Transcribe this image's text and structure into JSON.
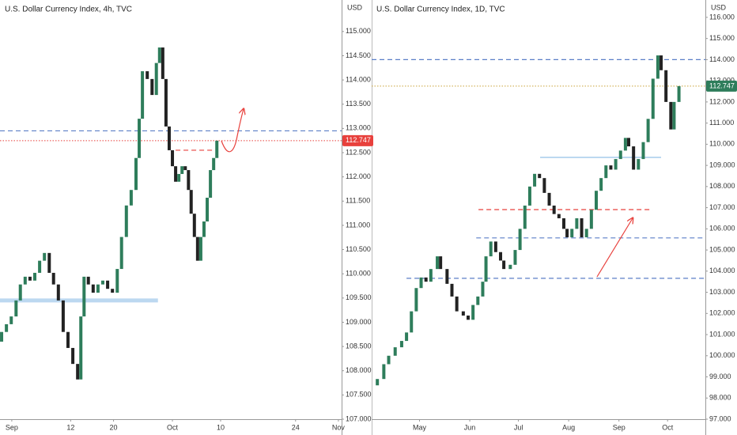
{
  "chart_data": [
    {
      "type": "candlestick",
      "title": "U.S. Dollar Currency Index, 4h, TVC",
      "axis_label": "USD",
      "x": [
        242.1,
        243.0,
        243.9,
        244.8,
        245.6,
        246.5,
        247.4,
        248.3,
        249.2,
        250.1,
        251.0,
        251.8,
        252.7,
        253.6,
        254.5,
        255.4,
        256.3,
        256.9,
        257.5,
        258.3,
        259.2,
        260.1,
        261.0,
        261.9,
        262.8,
        263.7,
        264.5,
        265.4,
        266.3,
        267.2,
        267.8,
        268.4,
        269.3,
        270.2,
        271.0,
        271.6,
        272.2,
        272.8,
        273.4,
        274.0,
        274.6,
        275.2,
        275.8,
        276.4,
        277.0,
        277.5,
        278.1,
        278.7,
        279.3,
        279.9,
        280.5,
        281.1,
        281.7,
        282.3
      ],
      "open": [
        108.6,
        108.8,
        108.96,
        109.12,
        109.45,
        109.78,
        109.94,
        109.86,
        110.02,
        110.27,
        110.43,
        110.02,
        109.78,
        109.45,
        108.8,
        108.47,
        108.14,
        107.82,
        109.12,
        109.94,
        109.78,
        109.61,
        109.78,
        109.86,
        109.69,
        109.61,
        110.1,
        110.76,
        111.41,
        111.73,
        112.39,
        113.2,
        114.18,
        114.02,
        113.69,
        114.35,
        114.67,
        114.02,
        113.04,
        112.55,
        112.22,
        111.9,
        112.06,
        112.22,
        112.14,
        111.73,
        111.24,
        110.76,
        110.27,
        110.76,
        111.08,
        111.57,
        112.14,
        112.39
      ],
      "close": [
        108.8,
        108.96,
        109.12,
        109.45,
        109.78,
        109.94,
        109.86,
        110.02,
        110.27,
        110.43,
        110.02,
        109.78,
        109.45,
        108.8,
        108.47,
        108.14,
        107.82,
        109.12,
        109.94,
        109.78,
        109.61,
        109.78,
        109.86,
        109.69,
        109.61,
        110.1,
        110.76,
        111.41,
        111.73,
        112.39,
        113.2,
        114.18,
        114.02,
        113.69,
        114.35,
        114.67,
        114.02,
        113.04,
        112.55,
        112.22,
        111.9,
        112.06,
        112.22,
        112.14,
        111.73,
        111.24,
        110.76,
        110.27,
        110.76,
        111.08,
        111.57,
        112.14,
        112.39,
        112.747
      ],
      "up_color": "#2e7d5b",
      "down_color": "#222222",
      "price_label_color": "#e8403c",
      "xlim": [
        241.8,
        305.6
      ],
      "ylim": [
        107,
        115.65
      ],
      "xticks": [
        {
          "value": 244,
          "label": "Sep"
        },
        {
          "value": 255,
          "label": "12"
        },
        {
          "value": 263,
          "label": "20"
        },
        {
          "value": 274,
          "label": "Oct"
        },
        {
          "value": 283,
          "label": "10"
        },
        {
          "value": 297,
          "label": "24"
        },
        {
          "value": 305,
          "label": "Nov"
        }
      ],
      "yticks": [
        {
          "value": 107,
          "label": "107.000"
        },
        {
          "value": 107.5,
          "label": "107.500"
        },
        {
          "value": 108,
          "label": "108.000"
        },
        {
          "value": 108.5,
          "label": "108.500"
        },
        {
          "value": 109,
          "label": "109.000"
        },
        {
          "value": 109.5,
          "label": "109.500"
        },
        {
          "value": 110,
          "label": "110.000"
        },
        {
          "value": 110.5,
          "label": "110.500"
        },
        {
          "value": 111,
          "label": "111.000"
        },
        {
          "value": 111.5,
          "label": "111.500"
        },
        {
          "value": 112,
          "label": "112.000"
        },
        {
          "value": 112.5,
          "label": "112.500"
        },
        {
          "value": 113,
          "label": "113.000"
        },
        {
          "value": 113.5,
          "label": "113.500"
        },
        {
          "value": 114,
          "label": "114.000"
        },
        {
          "value": 114.5,
          "label": "114.500"
        },
        {
          "value": 115,
          "label": "115.000"
        }
      ],
      "levels": [
        {
          "value": 112.95,
          "color": "#5b7fc7",
          "style": "dashed"
        },
        {
          "value": 112.747,
          "color": "#e8403c",
          "style": "dotted"
        },
        {
          "value": 109.45,
          "color": "#bcd8f0",
          "style": "thick",
          "from": 241.8,
          "to": 271.3
        },
        {
          "value": 112.55,
          "color": "#e8403c",
          "style": "dashed",
          "from": 274.6,
          "to": 281.7
        }
      ]
    },
    {
      "type": "candlestick",
      "title": "U.S. Dollar Currency Index, 1D, TVC",
      "axis_label": "USD",
      "x": [
        95,
        99,
        102,
        106,
        110,
        113,
        116,
        119,
        122,
        125,
        128,
        132,
        134,
        138,
        141,
        144,
        148,
        151,
        154,
        157,
        160,
        162,
        165,
        168,
        171,
        173,
        177,
        180,
        183,
        186,
        189,
        192,
        195,
        198,
        201,
        204,
        207,
        210,
        212,
        215,
        218,
        221,
        224,
        227,
        230,
        233,
        236,
        239,
        242,
        245,
        248,
        250,
        253,
        256,
        259,
        262,
        265,
        268,
        270,
        273,
        276,
        278,
        281
      ],
      "open": [
        98.6,
        98.9,
        99.6,
        100.0,
        100.4,
        100.7,
        101.1,
        102.1,
        103.2,
        103.7,
        103.5,
        104.1,
        104.7,
        104.1,
        103.4,
        102.8,
        102.1,
        101.9,
        101.7,
        102.4,
        102.8,
        103.5,
        104.7,
        105.4,
        104.9,
        104.5,
        104.1,
        104.3,
        105.0,
        106.0,
        107.1,
        108.0,
        108.6,
        108.4,
        107.7,
        107.1,
        106.7,
        106.5,
        106.0,
        105.6,
        106.0,
        106.5,
        105.6,
        106.0,
        106.9,
        107.8,
        108.4,
        109.0,
        108.8,
        109.3,
        109.7,
        110.3,
        109.9,
        108.8,
        109.3,
        110.1,
        111.2,
        113.1,
        114.2,
        113.5,
        112.0,
        110.7,
        112.0
      ],
      "close": [
        98.9,
        99.6,
        100.0,
        100.4,
        100.7,
        101.1,
        102.1,
        103.2,
        103.7,
        103.5,
        104.1,
        104.7,
        104.1,
        103.4,
        102.8,
        102.1,
        101.9,
        101.7,
        102.4,
        102.8,
        103.5,
        104.7,
        105.4,
        104.9,
        104.5,
        104.1,
        104.3,
        105.0,
        106.0,
        107.1,
        108.0,
        108.6,
        108.4,
        107.7,
        107.1,
        106.7,
        106.5,
        106.0,
        105.6,
        106.0,
        106.5,
        105.6,
        106.0,
        106.9,
        107.8,
        108.4,
        109.0,
        108.8,
        109.3,
        109.7,
        110.3,
        109.9,
        108.8,
        109.3,
        110.1,
        111.2,
        113.1,
        114.2,
        113.5,
        112.0,
        110.7,
        112.0,
        112.747
      ],
      "up_color": "#2e7d5b",
      "down_color": "#222222",
      "price_label_color": "#2e7d5b",
      "xlim": [
        91.5,
        297.3
      ],
      "ylim": [
        97,
        116.82
      ],
      "xticks": [
        {
          "value": 121,
          "label": "May"
        },
        {
          "value": 152,
          "label": "Jun"
        },
        {
          "value": 182,
          "label": "Jul"
        },
        {
          "value": 213,
          "label": "Aug"
        },
        {
          "value": 244,
          "label": "Sep"
        },
        {
          "value": 274,
          "label": "Oct"
        }
      ],
      "yticks": [
        {
          "value": 97,
          "label": "97.000"
        },
        {
          "value": 98,
          "label": "98.000"
        },
        {
          "value": 99,
          "label": "99.000"
        },
        {
          "value": 100,
          "label": "100.000"
        },
        {
          "value": 101,
          "label": "101.000"
        },
        {
          "value": 102,
          "label": "102.000"
        },
        {
          "value": 103,
          "label": "103.000"
        },
        {
          "value": 104,
          "label": "104.000"
        },
        {
          "value": 105,
          "label": "105.000"
        },
        {
          "value": 106,
          "label": "106.000"
        },
        {
          "value": 107,
          "label": "107.000"
        },
        {
          "value": 108,
          "label": "108.000"
        },
        {
          "value": 109,
          "label": "109.000"
        },
        {
          "value": 110,
          "label": "110.000"
        },
        {
          "value": 111,
          "label": "111.000"
        },
        {
          "value": 112,
          "label": "112.000"
        },
        {
          "value": 113,
          "label": "113.000"
        },
        {
          "value": 114,
          "label": "114.000"
        },
        {
          "value": 115,
          "label": "115.000"
        },
        {
          "value": 116,
          "label": "116.000"
        }
      ],
      "levels": [
        {
          "value": 114.0,
          "color": "#5b7fc7",
          "style": "dashed"
        },
        {
          "value": 112.747,
          "color": "#c9a23a",
          "style": "dotted"
        },
        {
          "value": 105.57,
          "color": "#5b7fc7",
          "style": "dashed",
          "from": 156,
          "to": 297.3
        },
        {
          "value": 103.66,
          "color": "#5b7fc7",
          "style": "dashed",
          "from": 113,
          "to": 297.3
        },
        {
          "value": 109.38,
          "color": "#bcd8f0",
          "style": "solid",
          "from": 195.4,
          "to": 270
        },
        {
          "value": 106.91,
          "color": "#e8403c",
          "style": "dashed",
          "from": 157.4,
          "to": 264.7
        }
      ]
    }
  ]
}
